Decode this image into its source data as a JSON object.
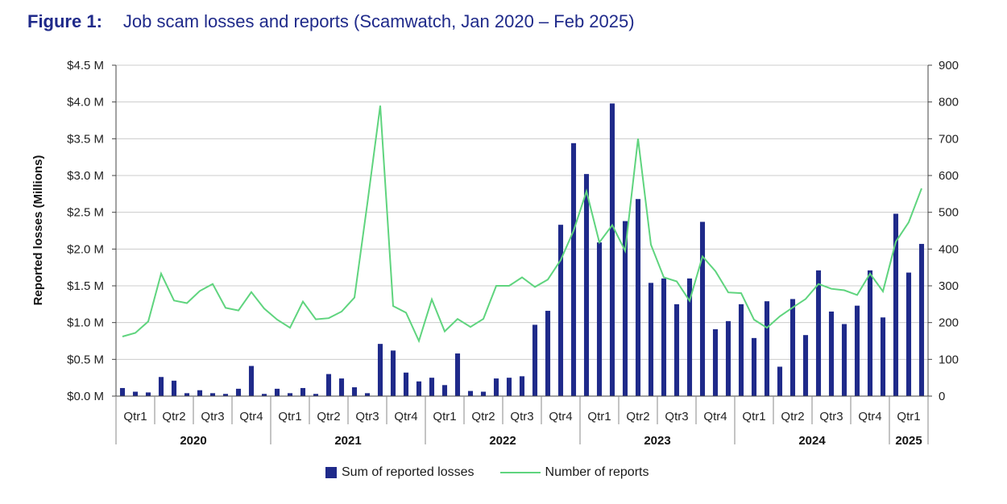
{
  "title": {
    "figure": "Figure 1:",
    "text": "Job scam losses and reports (Scamwatch, Jan 2020 – Feb 2025)"
  },
  "colors": {
    "bars": "#1f2a8a",
    "line": "#5fd47e",
    "grid": "#cccccc"
  },
  "chart_data": {
    "type": "bar",
    "title": "Job scam losses and reports (Scamwatch, Jan 2020 – Feb 2025)",
    "ylabel": "Reported losses (Millions)",
    "ylabel_right": "",
    "ylim": [
      0,
      4.5
    ],
    "ylim_right": [
      0,
      900
    ],
    "yticks_left": [
      "$0.0 M",
      "$0.5 M",
      "$1.0 M",
      "$1.5 M",
      "$2.0 M",
      "$2.5 M",
      "$3.0 M",
      "$3.5 M",
      "$4.0 M",
      "$4.5 M"
    ],
    "yticks_right": [
      "0",
      "100",
      "200",
      "300",
      "400",
      "500",
      "600",
      "700",
      "800",
      "900"
    ],
    "grid": true,
    "legend_position": "bottom",
    "quarters": [
      {
        "label": "Qtr1",
        "year": "2020"
      },
      {
        "label": "Qtr2",
        "year": "2020"
      },
      {
        "label": "Qtr3",
        "year": "2020"
      },
      {
        "label": "Qtr4",
        "year": "2020"
      },
      {
        "label": "Qtr1",
        "year": "2021"
      },
      {
        "label": "Qtr2",
        "year": "2021"
      },
      {
        "label": "Qtr3",
        "year": "2021"
      },
      {
        "label": "Qtr4",
        "year": "2021"
      },
      {
        "label": "Qtr1",
        "year": "2022"
      },
      {
        "label": "Qtr2",
        "year": "2022"
      },
      {
        "label": "Qtr3",
        "year": "2022"
      },
      {
        "label": "Qtr4",
        "year": "2022"
      },
      {
        "label": "Qtr1",
        "year": "2023"
      },
      {
        "label": "Qtr2",
        "year": "2023"
      },
      {
        "label": "Qtr3",
        "year": "2023"
      },
      {
        "label": "Qtr4",
        "year": "2023"
      },
      {
        "label": "Qtr1",
        "year": "2024"
      },
      {
        "label": "Qtr2",
        "year": "2024"
      },
      {
        "label": "Qtr3",
        "year": "2024"
      },
      {
        "label": "Qtr4",
        "year": "2024"
      },
      {
        "label": "Qtr1",
        "year": "2025"
      }
    ],
    "years": [
      "2020",
      "2021",
      "2022",
      "2023",
      "2024",
      "2025"
    ],
    "series": [
      {
        "name": "Sum of reported losses",
        "type": "bar",
        "axis": "left",
        "values": [
          0.11,
          0.06,
          0.05,
          0.26,
          0.21,
          0.04,
          0.08,
          0.04,
          0.03,
          0.1,
          0.41,
          0.03,
          0.1,
          0.04,
          0.11,
          0.03,
          0.3,
          0.24,
          0.12,
          0.04,
          0.71,
          0.62,
          0.32,
          0.2,
          0.25,
          0.15,
          0.58,
          0.07,
          0.06,
          0.24,
          0.25,
          0.27,
          0.97,
          1.16,
          2.33,
          3.44,
          3.02,
          2.09,
          3.98,
          2.38,
          2.68,
          1.54,
          1.6,
          1.25,
          1.6,
          2.37,
          0.91,
          1.02,
          1.25,
          0.79,
          1.29,
          0.4,
          1.32,
          0.83,
          1.71,
          1.15,
          0.98,
          1.23,
          1.71,
          1.07,
          2.48,
          1.68,
          2.07
        ]
      },
      {
        "name": "Number of reports",
        "type": "line",
        "axis": "right",
        "values": [
          162,
          172,
          203,
          333,
          260,
          253,
          286,
          305,
          240,
          233,
          283,
          238,
          208,
          186,
          257,
          209,
          212,
          230,
          268,
          524,
          790,
          245,
          227,
          150,
          263,
          176,
          210,
          188,
          210,
          300,
          300,
          323,
          297,
          317,
          370,
          450,
          557,
          418,
          465,
          395,
          700,
          412,
          323,
          312,
          259,
          380,
          340,
          282,
          280,
          208,
          186,
          217,
          241,
          264,
          305,
          292,
          288,
          275,
          333,
          285,
          420,
          473,
          565
        ]
      }
    ]
  }
}
